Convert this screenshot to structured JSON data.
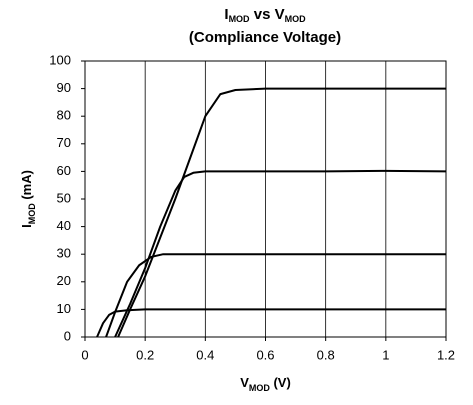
{
  "chart_data": {
    "type": "line",
    "title": [
      [
        {
          "text": "I"
        },
        {
          "text": "MOD",
          "sub": true
        },
        {
          "text": " vs V"
        },
        {
          "text": "MOD",
          "sub": true
        }
      ],
      [
        {
          "text": "(Compliance Voltage)"
        }
      ]
    ],
    "xlabel": [
      {
        "text": "V"
      },
      {
        "text": "MOD",
        "sub": true
      },
      {
        "text": " (V)"
      }
    ],
    "ylabel": [
      {
        "text": "I"
      },
      {
        "text": "MOD",
        "sub": true
      },
      {
        "text": " (mA)"
      }
    ],
    "xlim": [
      0,
      1.2
    ],
    "xticks": [
      0,
      0.2,
      0.4,
      0.6,
      0.8,
      1,
      1.2
    ],
    "ylim": [
      0,
      100
    ],
    "yticks": [
      0,
      10,
      20,
      30,
      40,
      50,
      60,
      70,
      80,
      90,
      100
    ],
    "grid": "x",
    "series": [
      {
        "color": "#000000",
        "x": [
          0.04,
          0.06,
          0.08,
          0.1,
          0.14,
          0.2,
          0.4,
          0.6,
          0.8,
          1.0,
          1.2
        ],
        "values": [
          0,
          5,
          8,
          9.2,
          9.7,
          10,
          10,
          10,
          10,
          10,
          10
        ]
      },
      {
        "color": "#000000",
        "x": [
          0.07,
          0.1,
          0.14,
          0.18,
          0.22,
          0.26,
          0.3,
          0.6,
          0.8,
          1.0,
          1.2
        ],
        "values": [
          0,
          9,
          20,
          26,
          29,
          30,
          30,
          30,
          30,
          30,
          30
        ]
      },
      {
        "color": "#000000",
        "x": [
          0.1,
          0.15,
          0.2,
          0.25,
          0.3,
          0.33,
          0.36,
          0.4,
          0.6,
          0.8,
          1.0,
          1.2
        ],
        "values": [
          0,
          12,
          25,
          40,
          53,
          58,
          59.5,
          60,
          60,
          60,
          60.2,
          60
        ]
      },
      {
        "color": "#000000",
        "x": [
          0.11,
          0.15,
          0.2,
          0.25,
          0.3,
          0.35,
          0.4,
          0.45,
          0.5,
          0.6,
          0.8,
          1.0,
          1.2
        ],
        "values": [
          0,
          10,
          22,
          36,
          50,
          65,
          80,
          88,
          89.5,
          90,
          90,
          90,
          90
        ]
      }
    ]
  }
}
